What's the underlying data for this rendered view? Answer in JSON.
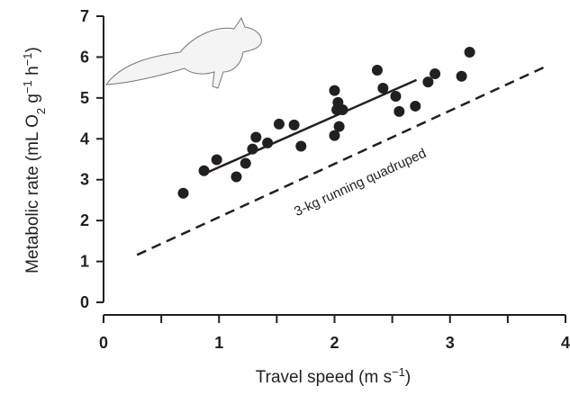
{
  "chart_data": {
    "type": "scatter",
    "xlabel": [
      "Travel speed (m s",
      "−1",
      ")"
    ],
    "ylabel": [
      "Metabolic rate (mL O",
      "2",
      " g",
      "−1",
      " h",
      "−1",
      ")"
    ],
    "x": [
      0.69,
      0.87,
      0.98,
      1.15,
      1.23,
      1.29,
      1.32,
      1.42,
      1.52,
      1.65,
      1.71,
      2.0,
      2.0,
      2.02,
      2.03,
      2.04,
      2.07,
      2.37,
      2.42,
      2.53,
      2.56,
      2.7,
      2.81,
      2.87,
      3.1,
      3.17
    ],
    "values": [
      2.67,
      3.22,
      3.49,
      3.07,
      3.4,
      3.75,
      4.04,
      3.9,
      4.36,
      4.34,
      3.82,
      5.18,
      4.08,
      4.71,
      4.89,
      4.3,
      4.71,
      5.68,
      5.24,
      5.04,
      4.67,
      4.8,
      5.39,
      5.59,
      5.53,
      6.12
    ],
    "color": "#231f20",
    "fit_line": {
      "x": [
        0.9,
        2.71
      ],
      "y": [
        3.18,
        5.44
      ]
    },
    "reference_line": {
      "x": [
        0.29,
        3.83
      ],
      "y": [
        1.16,
        5.77
      ],
      "label": "3-kg running quadruped"
    },
    "xlim": [
      0,
      4
    ],
    "xticks": [
      0,
      1,
      2,
      3,
      4
    ],
    "xminorticks": [
      0.5,
      1.5,
      2.5,
      3.5
    ],
    "ylim": [
      0,
      7
    ],
    "yticks": [
      0,
      1,
      2,
      3,
      4,
      5,
      6,
      7
    ]
  }
}
